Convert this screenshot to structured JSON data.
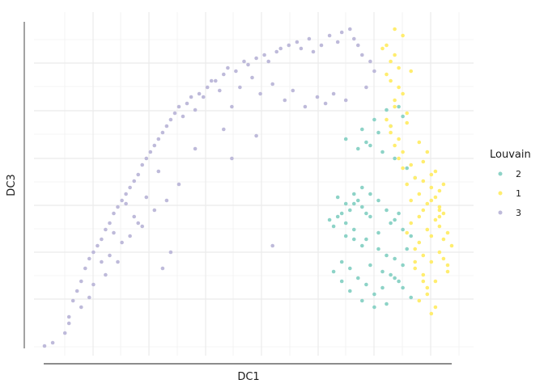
{
  "chart_data": {
    "type": "scatter",
    "title": "",
    "xlabel": "DC1",
    "ylabel": "DC3",
    "xlim": [
      0,
      1
    ],
    "ylim": [
      0,
      1
    ],
    "tick_labels_shown": false,
    "grid": true,
    "legend": {
      "title": "Louvain",
      "placement": "right"
    },
    "colors": {
      "2": "#8dd3c7",
      "1": "#ffed6f",
      "3": "#bebada"
    },
    "series": [
      {
        "name": "2",
        "color": "#8dd3c7",
        "x": [
          0.7,
          0.72,
          0.73,
          0.74,
          0.75,
          0.76,
          0.77,
          0.78,
          0.79,
          0.8,
          0.71,
          0.74,
          0.76,
          0.78,
          0.82,
          0.84,
          0.86,
          0.88,
          0.85,
          0.87,
          0.83,
          0.81,
          0.79,
          0.77,
          0.75,
          0.73,
          0.89,
          0.9,
          0.88,
          0.86,
          0.84,
          0.82,
          0.8,
          0.78,
          0.76,
          0.74,
          0.72,
          0.76,
          0.79,
          0.82,
          0.85,
          0.87,
          0.8,
          0.83,
          0.86,
          0.88,
          0.9,
          0.84,
          0.81,
          0.78,
          0.75,
          0.73,
          0.71,
          0.79,
          0.82,
          0.85,
          0.88,
          0.87,
          0.84,
          0.81,
          0.78,
          0.8,
          0.83,
          0.86,
          0.89,
          0.91,
          0.77,
          0.74
        ],
        "y": [
          0.39,
          0.4,
          0.41,
          0.38,
          0.42,
          0.44,
          0.45,
          0.43,
          0.41,
          0.4,
          0.37,
          0.34,
          0.33,
          0.31,
          0.3,
          0.28,
          0.27,
          0.25,
          0.22,
          0.2,
          0.18,
          0.16,
          0.19,
          0.21,
          0.24,
          0.26,
          0.3,
          0.34,
          0.36,
          0.39,
          0.42,
          0.45,
          0.47,
          0.49,
          0.47,
          0.44,
          0.46,
          0.36,
          0.33,
          0.35,
          0.38,
          0.41,
          0.25,
          0.23,
          0.21,
          0.18,
          0.15,
          0.13,
          0.12,
          0.14,
          0.17,
          0.2,
          0.23,
          0.63,
          0.66,
          0.68,
          0.71,
          0.74,
          0.73,
          0.7,
          0.67,
          0.62,
          0.6,
          0.58,
          0.55,
          0.52,
          0.61,
          0.64
        ]
      },
      {
        "name": "1",
        "color": "#ffed6f",
        "x": [
          0.9,
          0.92,
          0.93,
          0.94,
          0.95,
          0.96,
          0.97,
          0.98,
          0.99,
          1.0,
          0.91,
          0.93,
          0.95,
          0.97,
          0.99,
          0.94,
          0.96,
          0.98,
          0.92,
          0.95,
          0.97,
          0.93,
          0.96,
          0.99,
          0.91,
          0.94,
          0.98,
          0.93,
          0.95,
          0.97,
          0.92,
          0.9,
          0.89,
          0.88,
          0.87,
          0.86,
          0.85,
          0.84,
          0.86,
          0.88,
          0.85,
          0.87,
          0.86,
          0.84,
          0.88,
          0.85,
          0.87,
          0.89,
          0.86,
          0.84,
          0.83,
          0.85,
          0.87,
          0.88,
          0.86,
          0.9,
          0.91,
          0.89,
          0.92,
          0.9,
          0.93,
          0.94,
          0.96,
          0.98,
          0.95,
          0.97,
          0.92,
          0.94,
          0.96,
          0.93,
          0.95,
          0.91,
          0.89,
          0.97
        ],
        "y": [
          0.38,
          0.4,
          0.42,
          0.36,
          0.34,
          0.39,
          0.37,
          0.33,
          0.35,
          0.31,
          0.3,
          0.28,
          0.26,
          0.29,
          0.25,
          0.44,
          0.46,
          0.41,
          0.47,
          0.49,
          0.43,
          0.22,
          0.2,
          0.23,
          0.24,
          0.18,
          0.27,
          0.51,
          0.53,
          0.48,
          0.32,
          0.45,
          0.5,
          0.55,
          0.58,
          0.62,
          0.66,
          0.7,
          0.74,
          0.78,
          0.82,
          0.86,
          0.9,
          0.93,
          0.96,
          0.88,
          0.8,
          0.72,
          0.76,
          0.84,
          0.92,
          0.68,
          0.64,
          0.6,
          0.98,
          0.56,
          0.52,
          0.69,
          0.63,
          0.85,
          0.57,
          0.6,
          0.54,
          0.5,
          0.45,
          0.42,
          0.14,
          0.16,
          0.12,
          0.2,
          0.1,
          0.26,
          0.35,
          0.4
        ]
      },
      {
        "name": "3",
        "color": "#bebada",
        "x": [
          0.0,
          0.02,
          0.05,
          0.06,
          0.07,
          0.08,
          0.09,
          0.1,
          0.11,
          0.12,
          0.13,
          0.14,
          0.15,
          0.16,
          0.17,
          0.18,
          0.19,
          0.2,
          0.21,
          0.22,
          0.23,
          0.24,
          0.25,
          0.26,
          0.27,
          0.28,
          0.29,
          0.3,
          0.31,
          0.32,
          0.33,
          0.35,
          0.36,
          0.38,
          0.4,
          0.42,
          0.44,
          0.45,
          0.47,
          0.49,
          0.5,
          0.52,
          0.54,
          0.55,
          0.57,
          0.58,
          0.6,
          0.62,
          0.63,
          0.65,
          0.66,
          0.68,
          0.7,
          0.72,
          0.73,
          0.75,
          0.76,
          0.77,
          0.78,
          0.8,
          0.81,
          0.79,
          0.74,
          0.71,
          0.69,
          0.67,
          0.64,
          0.61,
          0.59,
          0.56,
          0.53,
          0.51,
          0.48,
          0.46,
          0.43,
          0.41,
          0.39,
          0.37,
          0.34,
          0.06,
          0.09,
          0.12,
          0.15,
          0.18,
          0.21,
          0.24,
          0.27,
          0.3,
          0.33,
          0.16,
          0.19,
          0.22,
          0.25,
          0.28,
          0.46,
          0.37,
          0.44,
          0.52,
          0.31,
          0.29,
          0.23,
          0.56,
          0.11,
          0.14,
          0.17,
          0.2
        ],
        "y": [
          0.0,
          0.01,
          0.04,
          0.09,
          0.14,
          0.17,
          0.2,
          0.24,
          0.27,
          0.29,
          0.31,
          0.33,
          0.36,
          0.38,
          0.41,
          0.43,
          0.45,
          0.47,
          0.49,
          0.51,
          0.53,
          0.56,
          0.58,
          0.6,
          0.62,
          0.64,
          0.66,
          0.68,
          0.7,
          0.72,
          0.74,
          0.75,
          0.77,
          0.78,
          0.8,
          0.82,
          0.84,
          0.86,
          0.85,
          0.88,
          0.87,
          0.89,
          0.9,
          0.88,
          0.91,
          0.92,
          0.93,
          0.94,
          0.92,
          0.95,
          0.91,
          0.93,
          0.96,
          0.94,
          0.97,
          0.98,
          0.95,
          0.93,
          0.9,
          0.88,
          0.85,
          0.8,
          0.76,
          0.78,
          0.75,
          0.77,
          0.74,
          0.79,
          0.76,
          0.81,
          0.78,
          0.83,
          0.8,
          0.74,
          0.79,
          0.82,
          0.77,
          0.73,
          0.71,
          0.07,
          0.12,
          0.19,
          0.22,
          0.26,
          0.34,
          0.37,
          0.42,
          0.45,
          0.5,
          0.28,
          0.32,
          0.4,
          0.46,
          0.54,
          0.58,
          0.61,
          0.67,
          0.65,
          0.29,
          0.24,
          0.38,
          0.31,
          0.15,
          0.26,
          0.35,
          0.44
        ]
      }
    ]
  }
}
